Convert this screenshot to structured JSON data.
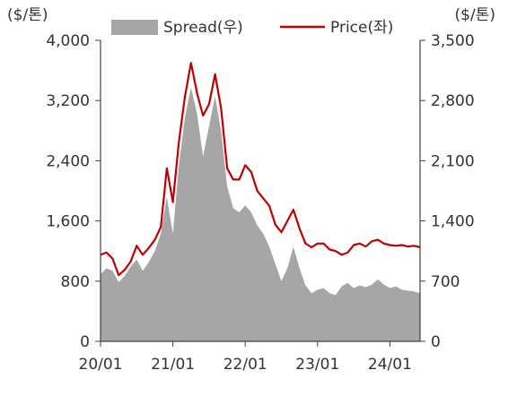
{
  "chart_data": {
    "type": "line+area",
    "legend": {
      "spread_label": "Spread(우)",
      "price_label": "Price(좌)",
      "placement": "top"
    },
    "y_left": {
      "unit": "($/톤)",
      "range": [
        0,
        4000
      ],
      "ticks": [
        "0",
        "800",
        "1,600",
        "2,400",
        "3,200",
        "4,000"
      ],
      "tick_values": [
        0,
        800,
        1600,
        2400,
        3200,
        4000
      ]
    },
    "y_right": {
      "unit": "($/톤)",
      "range": [
        0,
        3500
      ],
      "ticks": [
        "0",
        "700",
        "1,400",
        "2,100",
        "2,800",
        "3,500"
      ],
      "tick_values": [
        0,
        700,
        1400,
        2100,
        2800,
        3500
      ]
    },
    "x_axis": {
      "ticks": [
        "20/01",
        "21/01",
        "22/01",
        "23/01",
        "24/01"
      ],
      "tick_months": [
        0,
        12,
        24,
        36,
        48
      ],
      "range_months": [
        0,
        53
      ]
    },
    "series": [
      {
        "name": "Price(좌)",
        "axis": "left",
        "color": "#c00000",
        "points": [
          [
            "20/01",
            1150
          ],
          [
            "20/02",
            1180
          ],
          [
            "20/03",
            1100
          ],
          [
            "20/04",
            880
          ],
          [
            "20/05",
            950
          ],
          [
            "20/06",
            1060
          ],
          [
            "20/07",
            1270
          ],
          [
            "20/08",
            1150
          ],
          [
            "20/09",
            1240
          ],
          [
            "20/10",
            1350
          ],
          [
            "20/11",
            1520
          ],
          [
            "20/12",
            2300
          ],
          [
            "21/01",
            1850
          ],
          [
            "21/02",
            2650
          ],
          [
            "21/03",
            3250
          ],
          [
            "21/04",
            3700
          ],
          [
            "21/05",
            3300
          ],
          [
            "21/06",
            3000
          ],
          [
            "21/07",
            3150
          ],
          [
            "21/08",
            3550
          ],
          [
            "21/09",
            3100
          ],
          [
            "21/10",
            2300
          ],
          [
            "21/11",
            2150
          ],
          [
            "21/12",
            2150
          ],
          [
            "22/01",
            2340
          ],
          [
            "22/02",
            2250
          ],
          [
            "22/03",
            2000
          ],
          [
            "22/04",
            1900
          ],
          [
            "22/05",
            1800
          ],
          [
            "22/06",
            1550
          ],
          [
            "22/07",
            1450
          ],
          [
            "22/08",
            1600
          ],
          [
            "22/09",
            1750
          ],
          [
            "22/10",
            1500
          ],
          [
            "22/11",
            1300
          ],
          [
            "22/12",
            1250
          ],
          [
            "23/01",
            1300
          ],
          [
            "23/02",
            1300
          ],
          [
            "23/03",
            1220
          ],
          [
            "23/04",
            1200
          ],
          [
            "23/05",
            1150
          ],
          [
            "23/06",
            1180
          ],
          [
            "23/07",
            1280
          ],
          [
            "23/08",
            1300
          ],
          [
            "23/09",
            1260
          ],
          [
            "23/10",
            1330
          ],
          [
            "23/11",
            1350
          ],
          [
            "23/12",
            1300
          ],
          [
            "24/01",
            1280
          ],
          [
            "24/02",
            1270
          ],
          [
            "24/03",
            1280
          ],
          [
            "24/04",
            1260
          ],
          [
            "24/05",
            1270
          ],
          [
            "24/06",
            1250
          ]
        ]
      },
      {
        "name": "Spread(우)",
        "axis": "right",
        "color": "#a6a6a6",
        "points": [
          [
            "20/01",
            780
          ],
          [
            "20/02",
            850
          ],
          [
            "20/03",
            820
          ],
          [
            "20/04",
            690
          ],
          [
            "20/05",
            760
          ],
          [
            "20/06",
            870
          ],
          [
            "20/07",
            950
          ],
          [
            "20/08",
            820
          ],
          [
            "20/09",
            920
          ],
          [
            "20/10",
            1050
          ],
          [
            "20/11",
            1250
          ],
          [
            "20/12",
            1680
          ],
          [
            "21/01",
            1250
          ],
          [
            "21/02",
            2050
          ],
          [
            "21/03",
            2600
          ],
          [
            "21/04",
            2950
          ],
          [
            "21/05",
            2650
          ],
          [
            "21/06",
            2150
          ],
          [
            "21/07",
            2500
          ],
          [
            "21/08",
            2850
          ],
          [
            "21/09",
            2450
          ],
          [
            "21/10",
            1800
          ],
          [
            "21/11",
            1550
          ],
          [
            "21/12",
            1500
          ],
          [
            "22/01",
            1580
          ],
          [
            "22/02",
            1500
          ],
          [
            "22/03",
            1350
          ],
          [
            "22/04",
            1250
          ],
          [
            "22/05",
            1100
          ],
          [
            "22/06",
            900
          ],
          [
            "22/07",
            700
          ],
          [
            "22/08",
            850
          ],
          [
            "22/09",
            1100
          ],
          [
            "22/10",
            850
          ],
          [
            "22/11",
            650
          ],
          [
            "22/12",
            560
          ],
          [
            "23/01",
            600
          ],
          [
            "23/02",
            620
          ],
          [
            "23/03",
            560
          ],
          [
            "23/04",
            540
          ],
          [
            "23/05",
            640
          ],
          [
            "23/06",
            680
          ],
          [
            "23/07",
            620
          ],
          [
            "23/08",
            650
          ],
          [
            "23/09",
            630
          ],
          [
            "23/10",
            660
          ],
          [
            "23/11",
            720
          ],
          [
            "23/12",
            660
          ],
          [
            "24/01",
            620
          ],
          [
            "24/02",
            640
          ],
          [
            "24/03",
            600
          ],
          [
            "24/04",
            590
          ],
          [
            "24/05",
            580
          ],
          [
            "24/06",
            560
          ]
        ]
      }
    ]
  }
}
